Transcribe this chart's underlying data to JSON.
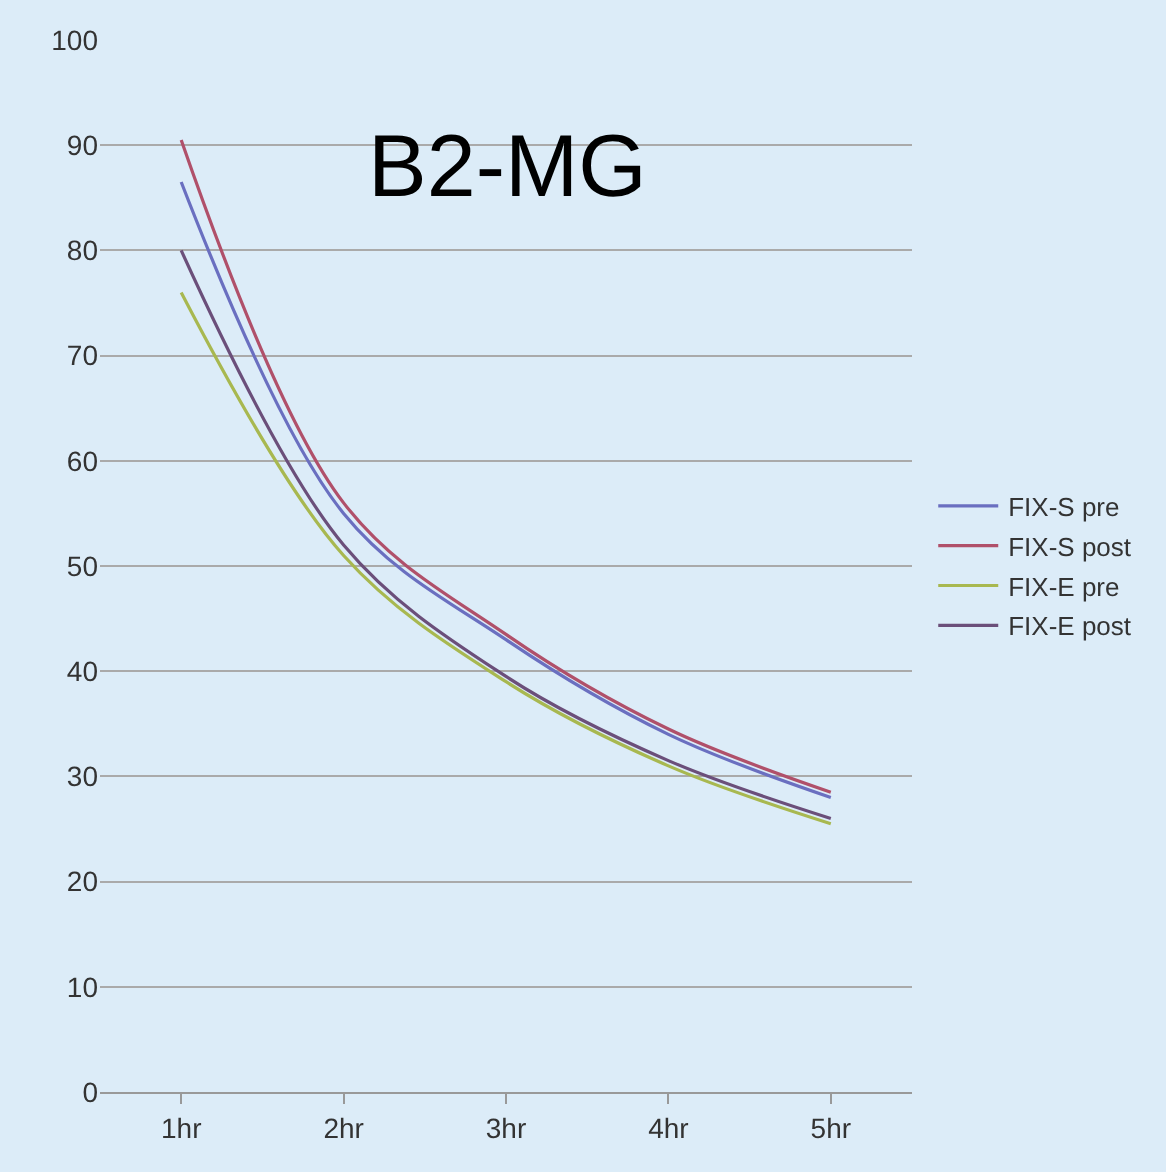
{
  "chart_data": {
    "type": "line",
    "title": "B2-MG",
    "categories": [
      "1hr",
      "2hr",
      "3hr",
      "4hr",
      "5hr"
    ],
    "series": [
      {
        "name": "FIX-S pre",
        "color": "#6a6fc0",
        "values": [
          86.5,
          55,
          43,
          34,
          28
        ]
      },
      {
        "name": "FIX-S post",
        "color": "#b0506a",
        "values": [
          90.5,
          56,
          43.5,
          34.5,
          28.5
        ]
      },
      {
        "name": "FIX-E pre",
        "color": "#a8b850",
        "values": [
          76,
          51,
          39,
          31,
          25.5
        ]
      },
      {
        "name": "FIX-E post",
        "color": "#6b4f7a",
        "values": [
          80,
          52,
          39.5,
          31.5,
          26
        ]
      }
    ],
    "ylim": [
      0,
      100
    ],
    "yticks": [
      0,
      10,
      20,
      30,
      40,
      50,
      60,
      70,
      80,
      90,
      100
    ],
    "grid": "y",
    "legend": "right",
    "marker": "none",
    "line_style": "solid"
  }
}
